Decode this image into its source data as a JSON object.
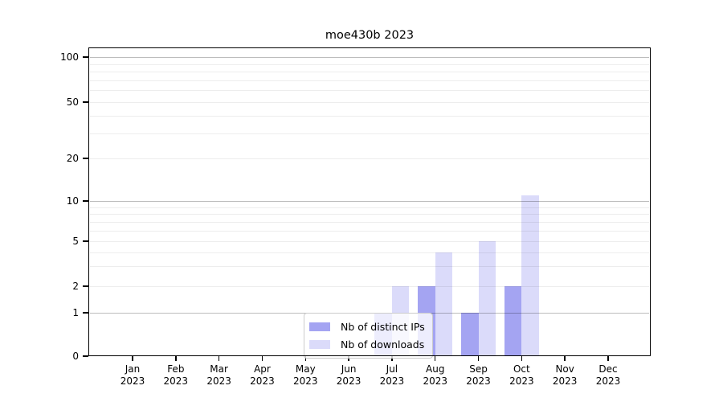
{
  "chart_data": {
    "type": "bar",
    "title": "moe430b 2023",
    "categories": [
      "Jan",
      "Feb",
      "Mar",
      "Apr",
      "May",
      "Jun",
      "Jul",
      "Aug",
      "Sep",
      "Oct",
      "Nov",
      "Dec"
    ],
    "category_year": "2023",
    "series": [
      {
        "name": "Nb of distinct IPs",
        "color": "#a4a4f2",
        "values": [
          0,
          0,
          0,
          0,
          0,
          0,
          1,
          2,
          1,
          2,
          0,
          0
        ]
      },
      {
        "name": "Nb of downloads",
        "color": "#dbdbfa",
        "values": [
          0,
          0,
          0,
          0,
          0,
          0,
          2,
          4,
          5,
          11,
          0,
          0
        ]
      }
    ],
    "xlabel": "",
    "ylabel": "",
    "y_ticks": [
      0,
      1,
      2,
      5,
      10,
      20,
      50,
      100
    ],
    "y_scale": "symlog",
    "ylim": [
      0,
      117
    ],
    "grid": "horizontal log gridlines, minor and major (powers of 10 darker)",
    "legend_position": "inside-bottom-center",
    "background_color": "#ffffff",
    "text_color": "#000000"
  }
}
